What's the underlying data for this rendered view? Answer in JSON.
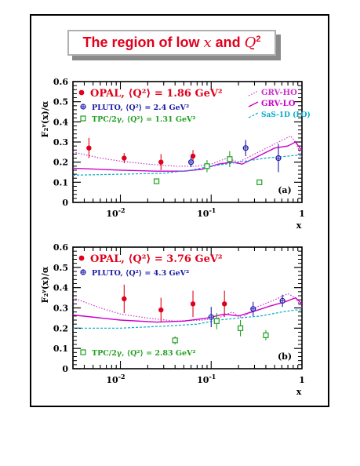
{
  "page_title": {
    "text": "The region of low x and Q²",
    "prefix": "The region of low ",
    "x": "x",
    "mid": " and ",
    "q": "Q",
    "sup": "2"
  },
  "chart_data": [
    {
      "type": "scatter",
      "panel": "(a)",
      "xlabel": "x",
      "ylabel": "F₂ᵞ(x)/α",
      "xscale": "log",
      "xlim": [
        0.003,
        1.0
      ],
      "ylim": [
        0,
        0.6
      ],
      "yticks": [
        "0",
        "0.1",
        "0.2",
        "0.3",
        "0.4",
        "0.5",
        "0.6"
      ],
      "xticks": [
        {
          "v": 0.01,
          "base": "10",
          "exp": "-2"
        },
        {
          "v": 0.1,
          "base": "10",
          "exp": "-1"
        },
        {
          "v": 1.0,
          "base": "1",
          "exp": ""
        }
      ],
      "legend": {
        "OPAL": "OPAL, ⟨Q²⟩ = 1.86 GeV²",
        "PLUTO": "PLUTO, ⟨Q²⟩ = 2.4 GeV²",
        "TPC": "TPC/2γ, ⟨Q²⟩ = 1.31 GeV²",
        "GRVHO": "GRV-HO",
        "GRVLO": "GRV-LO",
        "SAS": "SaS-1D (LO)"
      },
      "series": [
        {
          "name": "OPAL",
          "kind": "opal",
          "points": [
            [
              0.0045,
              0.27,
              0.05
            ],
            [
              0.011,
              0.22,
              0.025
            ],
            [
              0.028,
              0.2,
              0.04
            ],
            [
              0.063,
              0.23,
              0.03
            ]
          ]
        },
        {
          "name": "PLUTO",
          "kind": "pluto",
          "points": [
            [
              0.06,
              0.2,
              0.025
            ],
            [
              0.24,
              0.27,
              0.04
            ],
            [
              0.55,
              0.22,
              0.07
            ]
          ]
        },
        {
          "name": "TPC",
          "kind": "tpc",
          "points": [
            [
              0.025,
              0.105,
              0.0
            ],
            [
              0.09,
              0.18,
              0.03
            ],
            [
              0.16,
              0.215,
              0.04
            ],
            [
              0.34,
              0.1,
              0.0
            ]
          ]
        }
      ],
      "curves": [
        {
          "name": "GRV-HO",
          "kind": "dotted",
          "points": [
            [
              0.003,
              0.25
            ],
            [
              0.006,
              0.22
            ],
            [
              0.01,
              0.205
            ],
            [
              0.02,
              0.19
            ],
            [
              0.04,
              0.18
            ],
            [
              0.07,
              0.18
            ],
            [
              0.1,
              0.19
            ],
            [
              0.15,
              0.22
            ],
            [
              0.2,
              0.2
            ],
            [
              0.3,
              0.24
            ],
            [
              0.5,
              0.29
            ],
            [
              0.75,
              0.33
            ],
            [
              0.85,
              0.3
            ],
            [
              0.95,
              0.25
            ],
            [
              1.0,
              0.22
            ]
          ]
        },
        {
          "name": "GRV-LO",
          "kind": "solid",
          "points": [
            [
              0.003,
              0.17
            ],
            [
              0.01,
              0.16
            ],
            [
              0.025,
              0.155
            ],
            [
              0.05,
              0.155
            ],
            [
              0.08,
              0.165
            ],
            [
              0.12,
              0.19
            ],
            [
              0.17,
              0.2
            ],
            [
              0.22,
              0.19
            ],
            [
              0.3,
              0.22
            ],
            [
              0.5,
              0.27
            ],
            [
              0.7,
              0.28
            ],
            [
              0.85,
              0.3
            ],
            [
              0.95,
              0.27
            ],
            [
              1.0,
              0.26
            ]
          ]
        },
        {
          "name": "SaS-1D (LO)",
          "kind": "dashed",
          "points": [
            [
              0.003,
              0.135
            ],
            [
              0.01,
              0.14
            ],
            [
              0.03,
              0.145
            ],
            [
              0.06,
              0.16
            ],
            [
              0.1,
              0.18
            ],
            [
              0.2,
              0.2
            ],
            [
              0.4,
              0.22
            ],
            [
              0.7,
              0.23
            ],
            [
              0.9,
              0.235
            ],
            [
              1.0,
              0.23
            ]
          ]
        }
      ]
    },
    {
      "type": "scatter",
      "panel": "(b)",
      "xlabel": "x",
      "ylabel": "F₂ᵞ(x)/α",
      "xscale": "log",
      "xlim": [
        0.003,
        1.0
      ],
      "ylim": [
        0,
        0.6
      ],
      "yticks": [
        "0",
        "0.1",
        "0.2",
        "0.3",
        "0.4",
        "0.5",
        "0.6"
      ],
      "xticks": [
        {
          "v": 0.01,
          "base": "10",
          "exp": "-2"
        },
        {
          "v": 0.1,
          "base": "10",
          "exp": "-1"
        },
        {
          "v": 1.0,
          "base": "1",
          "exp": ""
        }
      ],
      "legend": {
        "OPAL": "OPAL, ⟨Q²⟩ = 3.76 GeV²",
        "PLUTO": "PLUTO, ⟨Q²⟩ = 4.3 GeV²",
        "TPC": "TPC/2γ, ⟨Q²⟩ = 2.83 GeV²"
      },
      "series": [
        {
          "name": "OPAL",
          "kind": "opal",
          "points": [
            [
              0.011,
              0.345,
              0.07
            ],
            [
              0.028,
              0.29,
              0.06
            ],
            [
              0.063,
              0.32,
              0.065
            ],
            [
              0.14,
              0.32,
              0.065
            ]
          ]
        },
        {
          "name": "PLUTO",
          "kind": "pluto",
          "points": [
            [
              0.1,
              0.255,
              0.05
            ],
            [
              0.29,
              0.295,
              0.035
            ],
            [
              0.61,
              0.335,
              0.03
            ]
          ]
        },
        {
          "name": "TPC",
          "kind": "tpc",
          "points": [
            [
              0.04,
              0.14,
              0.02
            ],
            [
              0.115,
              0.235,
              0.04
            ],
            [
              0.21,
              0.2,
              0.04
            ],
            [
              0.4,
              0.165,
              0.025
            ]
          ]
        }
      ],
      "curves": [
        {
          "name": "GRV-HO",
          "kind": "dotted",
          "points": [
            [
              0.003,
              0.35
            ],
            [
              0.006,
              0.3
            ],
            [
              0.01,
              0.27
            ],
            [
              0.02,
              0.25
            ],
            [
              0.04,
              0.235
            ],
            [
              0.08,
              0.24
            ],
            [
              0.12,
              0.25
            ],
            [
              0.17,
              0.28
            ],
            [
              0.22,
              0.25
            ],
            [
              0.3,
              0.3
            ],
            [
              0.5,
              0.34
            ],
            [
              0.7,
              0.37
            ],
            [
              0.85,
              0.35
            ],
            [
              1.0,
              0.3
            ]
          ]
        },
        {
          "name": "GRV-LO",
          "kind": "solid",
          "points": [
            [
              0.003,
              0.265
            ],
            [
              0.01,
              0.24
            ],
            [
              0.025,
              0.23
            ],
            [
              0.05,
              0.235
            ],
            [
              0.09,
              0.25
            ],
            [
              0.14,
              0.27
            ],
            [
              0.2,
              0.26
            ],
            [
              0.28,
              0.28
            ],
            [
              0.45,
              0.31
            ],
            [
              0.65,
              0.33
            ],
            [
              0.85,
              0.35
            ],
            [
              1.0,
              0.32
            ]
          ]
        },
        {
          "name": "SaS-1D (LO)",
          "kind": "dashed",
          "points": [
            [
              0.003,
              0.2
            ],
            [
              0.01,
              0.2
            ],
            [
              0.03,
              0.21
            ],
            [
              0.07,
              0.22
            ],
            [
              0.12,
              0.24
            ],
            [
              0.2,
              0.25
            ],
            [
              0.35,
              0.26
            ],
            [
              0.6,
              0.28
            ],
            [
              0.85,
              0.29
            ],
            [
              1.0,
              0.29
            ]
          ]
        }
      ]
    }
  ],
  "colors": {
    "opal": "#e0001c",
    "pluto": "#1a1aa8",
    "tpc": "#1fa01f",
    "grvho": "#cc33cc",
    "grvlo": "#cc00cc",
    "sas": "#00aacc",
    "title": "#e0001c"
  }
}
